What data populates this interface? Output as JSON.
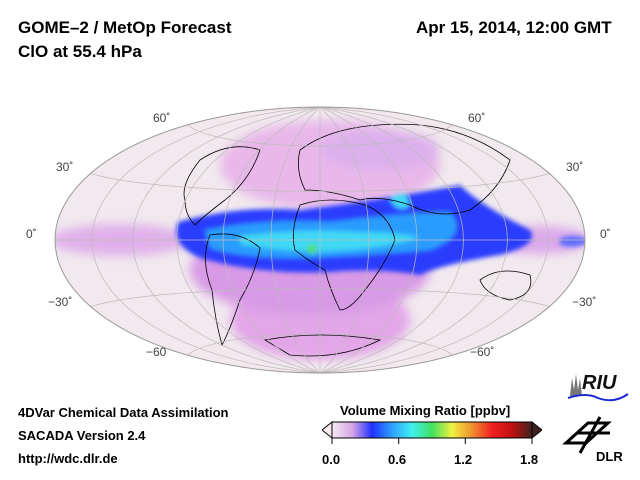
{
  "header": {
    "title": "GOME–2 / MetOp Forecast",
    "subtitle": "ClO at 55.4 hPa",
    "datetime": "Apr 15, 2014, 12:00 GMT"
  },
  "map": {
    "projection": "Hammer",
    "latitude_labels_left": [
      "60˚",
      "30˚",
      "0˚",
      "−30˚",
      "−60"
    ],
    "latitude_labels_right": [
      "60˚",
      "30˚",
      "0˚",
      "−30˚",
      "−60˚"
    ]
  },
  "footer": {
    "line1": "4DVar Chemical Data Assimilation",
    "line2": "SACADA Version 2.4",
    "line3": "http://wdc.dlr.de"
  },
  "colorbar": {
    "title": "Volume Mixing Ratio [ppbv]",
    "ticks": [
      "0.0",
      "0.6",
      "1.2",
      "1.8"
    ],
    "range": [
      0.0,
      1.8
    ],
    "colors": [
      "#f4eaf0",
      "#d9a6e6",
      "#2030ff",
      "#2ea0ff",
      "#40f0f0",
      "#40e060",
      "#f0f040",
      "#f09030",
      "#f02020",
      "#c01010",
      "#402020"
    ]
  },
  "logos": {
    "riu": "RIU",
    "dlr": "DLR"
  }
}
